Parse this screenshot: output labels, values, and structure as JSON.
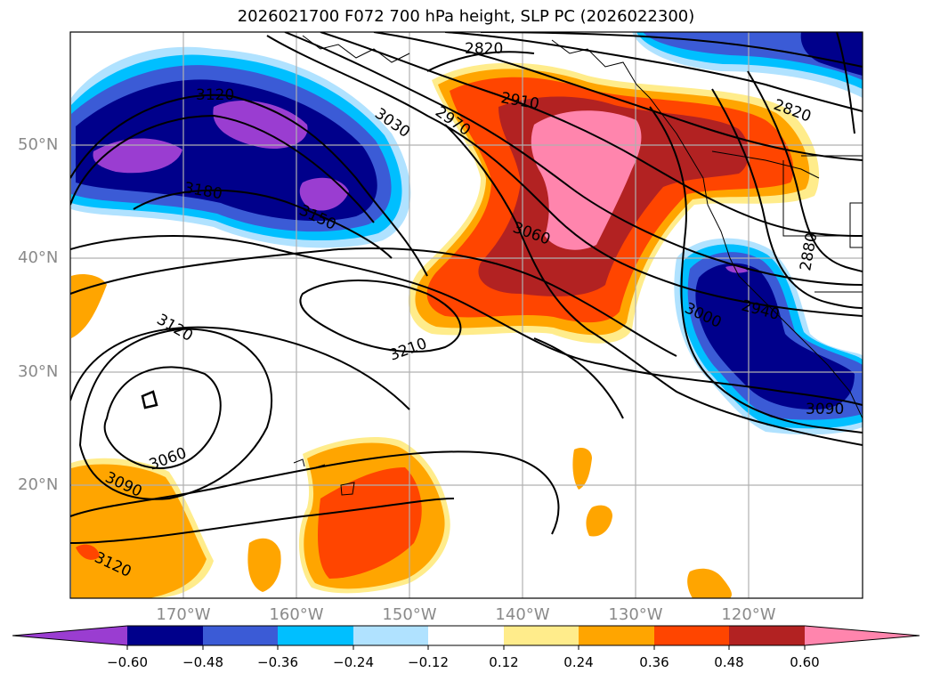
{
  "title": "2026021700 F072 700 hPa height, SLP PC (2026022300)",
  "lat_labels": [
    "50°N",
    "40°N",
    "30°N",
    "20°N"
  ],
  "lon_labels": [
    "170°W",
    "160°W",
    "150°W",
    "140°W",
    "130°W",
    "120°W"
  ],
  "colorbar": {
    "ticks": [
      "−0.60",
      "−0.48",
      "−0.36",
      "−0.24",
      "−0.12",
      "0.12",
      "0.24",
      "0.36",
      "0.48",
      "0.60"
    ],
    "colors": [
      "#9a3dd1",
      "#00008b",
      "#3b5bd6",
      "#00bfff",
      "#b0e2ff",
      "#ffffff",
      "#ffec8b",
      "#ffa500",
      "#ff4500",
      "#b22222",
      "#ff85ad"
    ]
  },
  "contour_labels": [
    "2820",
    "2910",
    "2970",
    "3030",
    "3120",
    "3180",
    "3150",
    "3060",
    "2820",
    "2880",
    "2940",
    "3000",
    "3210",
    "3120",
    "3060",
    "3090",
    "3120",
    "3090"
  ]
}
